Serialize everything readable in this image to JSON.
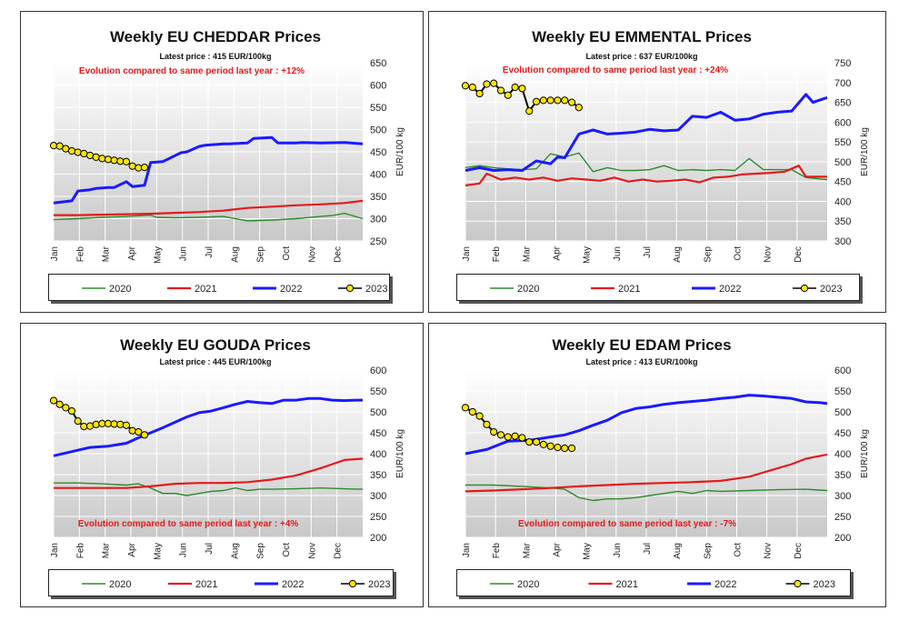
{
  "chart_data": [
    {
      "type": "line",
      "title": "Weekly EU CHEDDAR Prices",
      "subtitle": "Latest price : 415 EUR/100kg",
      "annotation": "Evolution compared to same period last year : +12%",
      "ylabel": "EUR/100 kg",
      "ylim": [
        250,
        650
      ],
      "yticks": [
        250,
        300,
        350,
        400,
        450,
        500,
        550,
        600,
        650
      ],
      "months": [
        "Jan",
        "Feb",
        "Mar",
        "Apr",
        "May",
        "Jun",
        "Jul",
        "Aug",
        "Sep",
        "Oct",
        "Nov",
        "Dec"
      ],
      "series": [
        {
          "name": "2020",
          "color": "#2e8b2e",
          "x": [
            0,
            4,
            8,
            12,
            16,
            17,
            20,
            24,
            28,
            32,
            34,
            36,
            40,
            44,
            46,
            48,
            51
          ],
          "y": [
            298,
            300,
            303,
            305,
            308,
            303,
            302,
            303,
            305,
            295,
            296,
            297,
            300,
            305,
            307,
            312,
            300
          ]
        },
        {
          "name": "2021",
          "color": "#e41a1c",
          "x": [
            0,
            4,
            8,
            12,
            16,
            20,
            24,
            28,
            32,
            36,
            40,
            44,
            48,
            51
          ],
          "y": [
            308,
            308,
            309,
            310,
            311,
            313,
            315,
            318,
            324,
            327,
            330,
            332,
            335,
            340
          ]
        },
        {
          "name": "2022",
          "color": "#1a1aff",
          "x": [
            0,
            3,
            4,
            6,
            7,
            9,
            10,
            12,
            13,
            15,
            16,
            17,
            18,
            21,
            22,
            24,
            25,
            28,
            29,
            32,
            33,
            36,
            37,
            40,
            41,
            44,
            48,
            51
          ],
          "y": [
            335,
            340,
            362,
            365,
            368,
            370,
            370,
            383,
            372,
            375,
            426,
            427,
            428,
            448,
            450,
            462,
            465,
            468,
            468,
            470,
            480,
            482,
            470,
            470,
            471,
            470,
            471,
            468
          ]
        },
        {
          "name": "2023",
          "color": "#000000",
          "marker": "#ffe600",
          "x": [
            0,
            1,
            2,
            3,
            4,
            5,
            6,
            7,
            8,
            9,
            10,
            11,
            12,
            13,
            14,
            15
          ],
          "y": [
            464,
            463,
            457,
            452,
            449,
            446,
            442,
            438,
            435,
            433,
            431,
            429,
            428,
            418,
            414,
            415
          ]
        }
      ]
    },
    {
      "type": "line",
      "title": "Weekly EU EMMENTAL Prices",
      "subtitle": "Latest price : 637 EUR/100kg",
      "annotation": "Evolution compared to same period last year : +24%",
      "ylabel": "EUR/100 kg",
      "ylim": [
        300,
        750
      ],
      "yticks": [
        300,
        350,
        400,
        450,
        500,
        550,
        600,
        650,
        700,
        750
      ],
      "months": [
        "Jan",
        "Feb",
        "Mar",
        "Apr",
        "May",
        "Jun",
        "Jul",
        "Aug",
        "Sep",
        "Oct",
        "Nov",
        "Dec"
      ],
      "series": [
        {
          "name": "2020",
          "color": "#2e8b2e",
          "x": [
            0,
            2,
            4,
            6,
            8,
            10,
            12,
            14,
            16,
            18,
            20,
            22,
            24,
            26,
            28,
            30,
            32,
            34,
            36,
            38,
            40,
            42,
            44,
            46,
            48,
            51
          ],
          "y": [
            485,
            490,
            485,
            482,
            480,
            482,
            520,
            512,
            522,
            475,
            485,
            478,
            478,
            480,
            490,
            478,
            480,
            478,
            480,
            478,
            508,
            480,
            480,
            480,
            460,
            455
          ]
        },
        {
          "name": "2021",
          "color": "#e41a1c",
          "x": [
            0,
            2,
            3,
            5,
            7,
            9,
            11,
            13,
            15,
            17,
            19,
            21,
            23,
            25,
            27,
            29,
            31,
            33,
            35,
            37,
            39,
            41,
            43,
            45,
            47,
            48,
            51
          ],
          "y": [
            440,
            445,
            470,
            455,
            460,
            455,
            460,
            452,
            458,
            455,
            452,
            460,
            450,
            455,
            450,
            452,
            455,
            448,
            460,
            462,
            468,
            470,
            472,
            475,
            490,
            462,
            462
          ]
        },
        {
          "name": "2022",
          "color": "#1a1aff",
          "x": [
            0,
            2,
            4,
            6,
            8,
            10,
            12,
            13,
            14,
            16,
            18,
            20,
            22,
            24,
            26,
            28,
            30,
            32,
            34,
            36,
            38,
            40,
            42,
            44,
            46,
            48,
            49,
            51
          ],
          "y": [
            478,
            485,
            478,
            480,
            478,
            502,
            495,
            512,
            510,
            570,
            580,
            570,
            572,
            575,
            582,
            578,
            580,
            615,
            612,
            625,
            605,
            608,
            620,
            625,
            628,
            670,
            650,
            662
          ]
        },
        {
          "name": "2023",
          "color": "#000000",
          "marker": "#ffe600",
          "x": [
            0,
            1,
            2,
            3,
            4,
            5,
            6,
            7,
            8,
            9,
            10,
            11,
            12,
            13,
            14,
            15,
            16
          ],
          "y": [
            692,
            688,
            672,
            696,
            698,
            680,
            668,
            688,
            685,
            628,
            652,
            655,
            655,
            655,
            655,
            650,
            637
          ]
        }
      ]
    },
    {
      "type": "line",
      "title": "Weekly EU GOUDA Prices",
      "subtitle": "Latest price : 445 EUR/100kg",
      "annotation": "Evolution compared to same period last year : +4%",
      "ylabel": "EUR/100 kg",
      "ylim": [
        200,
        600
      ],
      "yticks": [
        200,
        250,
        300,
        350,
        400,
        450,
        500,
        550,
        600
      ],
      "months": [
        "Jan",
        "Feb",
        "Mar",
        "Apr",
        "May",
        "Jun",
        "Jul",
        "Aug",
        "Sep",
        "Oct",
        "Nov",
        "Dec"
      ],
      "series": [
        {
          "name": "2020",
          "color": "#2e8b2e",
          "x": [
            0,
            4,
            8,
            12,
            14,
            16,
            18,
            20,
            22,
            24,
            26,
            28,
            30,
            32,
            34,
            36,
            40,
            44,
            48,
            51
          ],
          "y": [
            330,
            330,
            328,
            325,
            328,
            318,
            305,
            305,
            300,
            305,
            310,
            312,
            318,
            312,
            315,
            315,
            316,
            318,
            316,
            315
          ]
        },
        {
          "name": "2021",
          "color": "#e41a1c",
          "x": [
            0,
            4,
            8,
            12,
            16,
            20,
            24,
            28,
            32,
            36,
            40,
            44,
            46,
            48,
            51
          ],
          "y": [
            318,
            318,
            318,
            318,
            322,
            328,
            330,
            330,
            332,
            338,
            348,
            365,
            375,
            385,
            388
          ]
        },
        {
          "name": "2022",
          "color": "#1a1aff",
          "x": [
            0,
            3,
            6,
            9,
            12,
            14,
            16,
            18,
            20,
            22,
            24,
            26,
            28,
            30,
            32,
            34,
            36,
            38,
            40,
            42,
            44,
            46,
            48,
            50,
            51
          ],
          "y": [
            395,
            405,
            415,
            418,
            425,
            438,
            450,
            462,
            475,
            488,
            498,
            502,
            510,
            518,
            525,
            522,
            520,
            528,
            528,
            532,
            532,
            528,
            527,
            528,
            528
          ]
        },
        {
          "name": "2023",
          "color": "#000000",
          "marker": "#ffe600",
          "x": [
            0,
            1,
            2,
            3,
            4,
            5,
            6,
            7,
            8,
            9,
            10,
            11,
            12,
            13,
            14,
            15
          ],
          "y": [
            527,
            518,
            510,
            502,
            478,
            465,
            466,
            470,
            472,
            472,
            471,
            470,
            468,
            455,
            452,
            445
          ]
        }
      ]
    },
    {
      "type": "line",
      "title": "Weekly EU EDAM Prices",
      "subtitle": "Latest price : 413 EUR/100kg",
      "annotation": "Evolution compared to same period last year : -7%",
      "ylabel": "EUR/100 kg",
      "ylim": [
        200,
        600
      ],
      "yticks": [
        200,
        250,
        300,
        350,
        400,
        450,
        500,
        550,
        600
      ],
      "months": [
        "Jan",
        "Feb",
        "Mar",
        "Apr",
        "May",
        "Jun",
        "Jul",
        "Aug",
        "Sep",
        "Oct",
        "Nov",
        "Dec"
      ],
      "series": [
        {
          "name": "2020",
          "color": "#2e8b2e",
          "x": [
            0,
            4,
            8,
            12,
            14,
            16,
            18,
            20,
            22,
            24,
            26,
            28,
            30,
            32,
            34,
            36,
            40,
            44,
            48,
            51
          ],
          "y": [
            325,
            325,
            322,
            318,
            315,
            295,
            288,
            292,
            292,
            295,
            300,
            305,
            310,
            305,
            312,
            310,
            312,
            314,
            315,
            312
          ]
        },
        {
          "name": "2021",
          "color": "#e41a1c",
          "x": [
            0,
            4,
            8,
            12,
            16,
            20,
            24,
            28,
            32,
            36,
            40,
            44,
            46,
            48,
            51
          ],
          "y": [
            310,
            312,
            315,
            318,
            322,
            325,
            328,
            330,
            332,
            335,
            345,
            365,
            375,
            388,
            398
          ]
        },
        {
          "name": "2022",
          "color": "#1a1aff",
          "x": [
            0,
            3,
            6,
            9,
            12,
            14,
            16,
            18,
            20,
            22,
            24,
            26,
            28,
            30,
            32,
            34,
            36,
            38,
            40,
            42,
            44,
            46,
            48,
            50,
            51
          ],
          "y": [
            400,
            410,
            430,
            432,
            440,
            445,
            455,
            468,
            480,
            498,
            508,
            512,
            518,
            522,
            525,
            528,
            532,
            535,
            540,
            538,
            535,
            532,
            524,
            522,
            520
          ]
        },
        {
          "name": "2023",
          "color": "#000000",
          "marker": "#ffe600",
          "x": [
            0,
            1,
            2,
            3,
            4,
            5,
            6,
            7,
            8,
            9,
            10,
            11,
            12,
            13,
            14,
            15
          ],
          "y": [
            510,
            500,
            490,
            470,
            452,
            445,
            440,
            442,
            438,
            428,
            428,
            422,
            418,
            415,
            413,
            413
          ]
        }
      ]
    }
  ]
}
